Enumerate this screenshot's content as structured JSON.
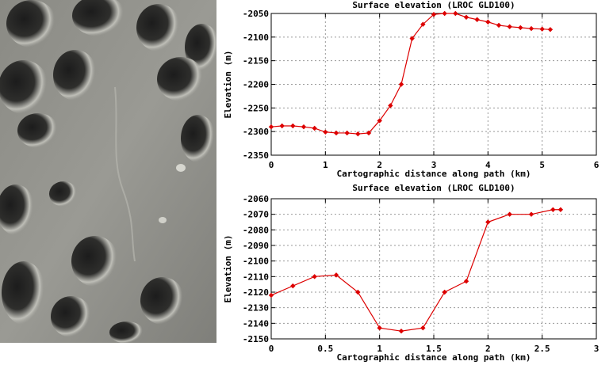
{
  "image": {
    "description_icon": "lunar-surface-photo"
  },
  "chart_data": [
    {
      "type": "line",
      "title": "Surface elevation (LROC GLD100)",
      "xlabel": "Cartographic distance along path (km)",
      "ylabel": "Elevation (m)",
      "xlim": [
        0,
        6
      ],
      "ylim": [
        -2350,
        -2050
      ],
      "xticks": [
        0,
        1,
        2,
        3,
        4,
        5,
        6
      ],
      "yticks": [
        -2350,
        -2300,
        -2250,
        -2200,
        -2150,
        -2100,
        -2050
      ],
      "grid": true,
      "color": "#dd0000",
      "series": [
        {
          "x": [
            0,
            0.2,
            0.4,
            0.6,
            0.8,
            1.0,
            1.2,
            1.4,
            1.6,
            1.8,
            2.0,
            2.2,
            2.4,
            2.6,
            2.8,
            3.0,
            3.2,
            3.4,
            3.6,
            3.8,
            4.0,
            4.2,
            4.4,
            4.6,
            4.8,
            5.0,
            5.15
          ],
          "y": [
            -2290,
            -2288,
            -2288,
            -2290,
            -2293,
            -2301,
            -2303,
            -2303,
            -2305,
            -2303,
            -2277,
            -2245,
            -2200,
            -2103,
            -2073,
            -2052,
            -2050,
            -2050,
            -2058,
            -2063,
            -2068,
            -2075,
            -2078,
            -2080,
            -2082,
            -2083,
            -2084
          ]
        }
      ]
    },
    {
      "type": "line",
      "title": "Surface elevation (LROC GLD100)",
      "xlabel": "Cartographic distance along path (km)",
      "ylabel": "Elevation (m)",
      "xlim": [
        0,
        3
      ],
      "ylim": [
        -2150,
        -2060
      ],
      "xticks": [
        0,
        0.5,
        1,
        1.5,
        2,
        2.5,
        3
      ],
      "yticks": [
        -2150,
        -2140,
        -2130,
        -2120,
        -2110,
        -2100,
        -2090,
        -2080,
        -2070,
        -2060
      ],
      "grid": true,
      "color": "#dd0000",
      "series": [
        {
          "x": [
            0,
            0.2,
            0.4,
            0.6,
            0.8,
            1.0,
            1.2,
            1.4,
            1.6,
            1.8,
            2.0,
            2.2,
            2.4,
            2.6,
            2.67
          ],
          "y": [
            -2122,
            -2116,
            -2110,
            -2109,
            -2120,
            -2143,
            -2145,
            -2143,
            -2120,
            -2113,
            -2075,
            -2070,
            -2070,
            -2067,
            -2067
          ]
        }
      ]
    }
  ]
}
